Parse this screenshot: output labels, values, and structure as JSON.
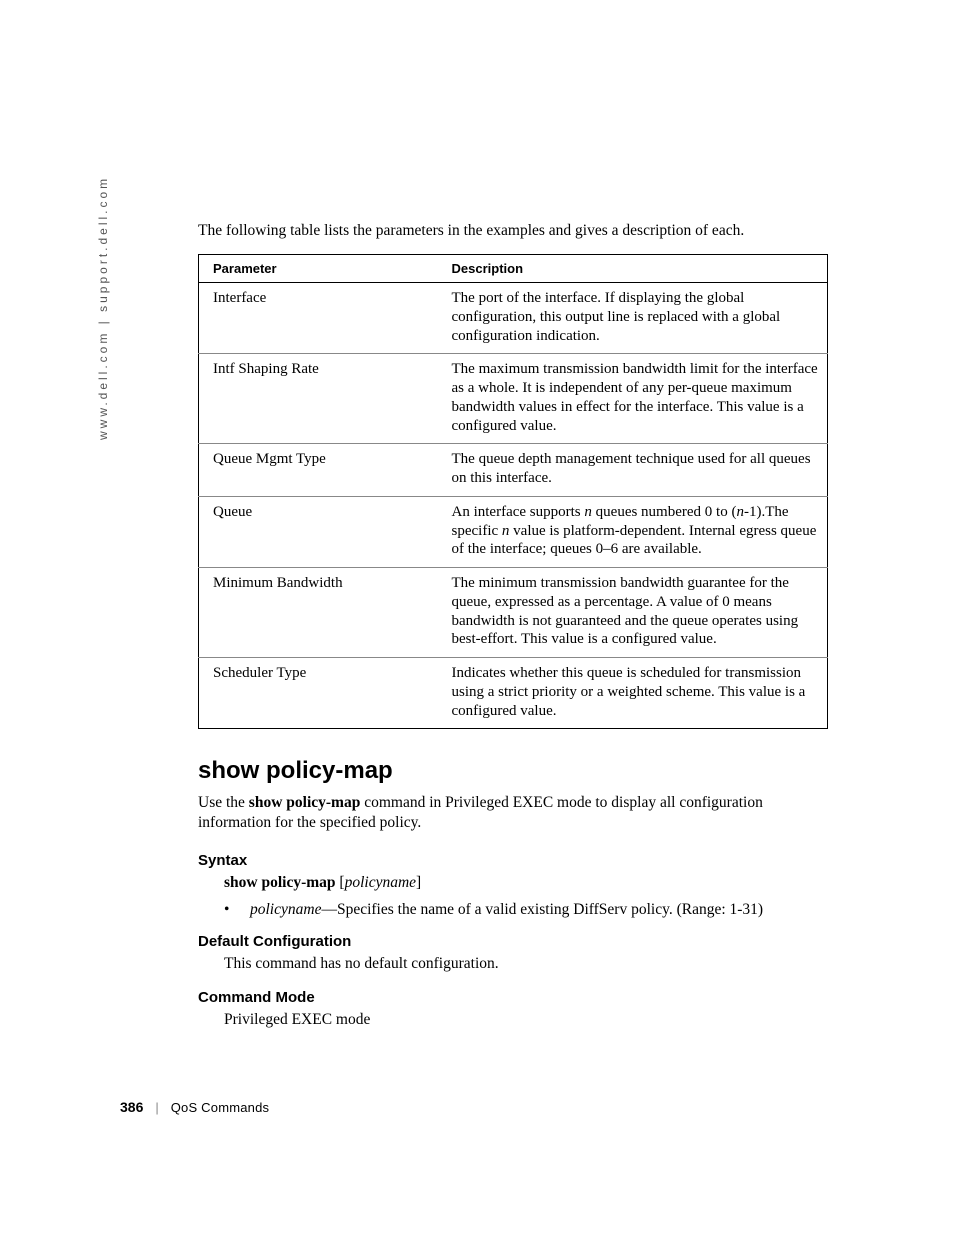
{
  "side_url": "www.dell.com | support.dell.com",
  "intro": "The following table lists the parameters in the examples and gives a description of each.",
  "table": {
    "header_param": "Parameter",
    "header_desc": "Description",
    "rows": [
      {
        "param": "Interface",
        "desc": "The port of the interface. If displaying the global configuration, this output line is replaced with a global configuration indication."
      },
      {
        "param": "Intf Shaping Rate",
        "desc": "The maximum transmission bandwidth limit for the interface as a whole. It is independent of any per-queue maximum bandwidth values in effect for the interface. This value is a configured value."
      },
      {
        "param": "Queue Mgmt Type",
        "desc": "The queue depth management technique used for all queues on this interface."
      },
      {
        "param": "Queue",
        "desc_html": "An interface supports <span class=\"italic\">n</span> queues numbered 0 to (<span class=\"italic\">n</span>-1).The specific <span class=\"italic\">n</span> value is platform-dependent. Internal egress queue of the interface; queues 0–6 are available."
      },
      {
        "param": "Minimum Bandwidth",
        "desc": "The minimum transmission bandwidth guarantee for the queue, expressed as a percentage. A value of 0 means bandwidth is not guaranteed and the queue operates using best-effort. This value is a configured value."
      },
      {
        "param": "Scheduler Type",
        "desc": "Indicates whether this queue is scheduled for transmission using a strict priority or a weighted scheme. This value is a configured value."
      }
    ]
  },
  "section": {
    "title": "show policy-map",
    "body_prefix": "Use the ",
    "body_bold": "show policy-map",
    "body_suffix": " command in Privileged EXEC mode to display all configuration information for the specified policy.",
    "syntax_label": "Syntax",
    "syntax_cmd_bold": "show policy-map",
    "syntax_cmd_arg": "policyname",
    "bullet_arg": "policyname",
    "bullet_text": "—Specifies the name of a valid existing DiffServ policy. (Range: 1-31)",
    "defcfg_label": "Default Configuration",
    "defcfg_text": "This command has no default configuration.",
    "cmdmode_label": "Command Mode",
    "cmdmode_text": "Privileged EXEC mode"
  },
  "footer": {
    "page": "386",
    "divider": "|",
    "chapter": "QoS Commands"
  }
}
